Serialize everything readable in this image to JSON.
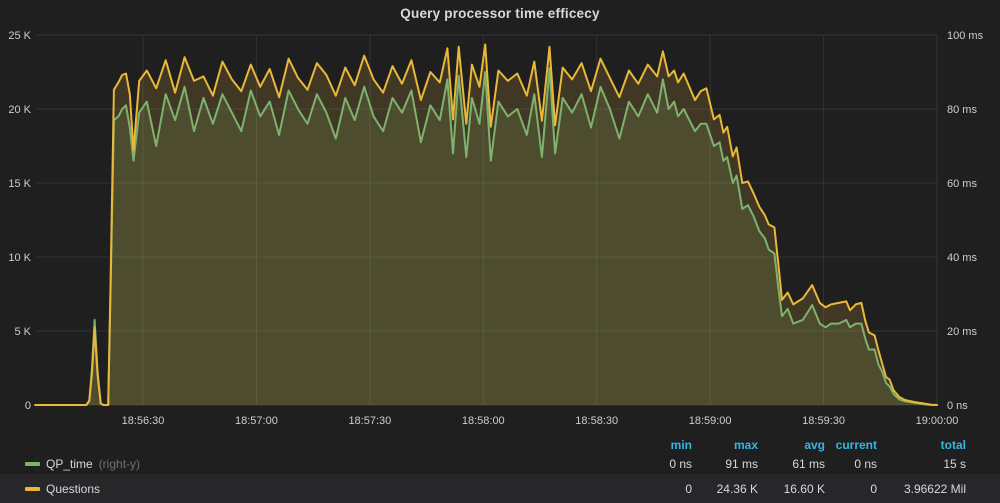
{
  "panel": {
    "title": "Query processor time efficecy"
  },
  "colors": {
    "background": "#1f1f20",
    "grid": "rgba(255,255,255,0.09)",
    "tick_text": "#cdced0",
    "qp_time_green": "#7EB26D",
    "questions_yellow": "#EAB839",
    "legend_header_blue": "#33B5E5",
    "legend_highlight_row": "#27272a",
    "fill_opacity": 0.17
  },
  "legend": {
    "columns": [
      "min",
      "max",
      "avg",
      "current",
      "total"
    ],
    "series": [
      {
        "name": "QP_time",
        "axis_tag": "(right-y)",
        "color": "#7EB26D",
        "stats": {
          "min": "0 ns",
          "max": "91 ms",
          "avg": "61 ms",
          "current": "0 ns",
          "total": "15 s"
        }
      },
      {
        "name": "Questions",
        "axis_tag": "",
        "color": "#EAB839",
        "stats": {
          "min": "0",
          "max": "24.36 K",
          "avg": "16.60 K",
          "current": "0",
          "total": "3.96622 Mil"
        }
      }
    ]
  },
  "chart_data": {
    "type": "area",
    "title": "Query processor time efficecy",
    "x_axis": {
      "kind": "time",
      "range": [
        "18:56:00",
        "19:00:00"
      ],
      "ticks": [
        {
          "t": 30,
          "label": "18:56:30"
        },
        {
          "t": 60,
          "label": "18:57:00"
        },
        {
          "t": 90,
          "label": "18:57:30"
        },
        {
          "t": 120,
          "label": "18:58:00"
        },
        {
          "t": 150,
          "label": "18:58:30"
        },
        {
          "t": 180,
          "label": "18:59:00"
        },
        {
          "t": 210,
          "label": "18:59:30"
        },
        {
          "t": 240,
          "label": "19:00:00"
        }
      ]
    },
    "left_axis": {
      "series": "Questions",
      "unit": "count (K)",
      "max": 25,
      "ticks": [
        {
          "value": 25,
          "label": "25 K"
        },
        {
          "value": 20,
          "label": "20 K"
        },
        {
          "value": 15,
          "label": "15 K"
        },
        {
          "value": 10,
          "label": "10 K"
        },
        {
          "value": 5,
          "label": "5 K"
        },
        {
          "value": 0,
          "label": "0"
        }
      ]
    },
    "right_axis": {
      "series": "QP_time",
      "unit": "ms",
      "max": 100,
      "ticks": [
        {
          "value": 100,
          "label": "100 ms"
        },
        {
          "value": 80,
          "label": "80 ms"
        },
        {
          "value": 60,
          "label": "60 ms"
        },
        {
          "value": 40,
          "label": "40 ms"
        },
        {
          "value": 20,
          "label": "20 ms"
        },
        {
          "value": 0,
          "label": "0 ns"
        }
      ]
    },
    "series": [
      {
        "name": "QP_time",
        "axis": "right",
        "color": "#7EB26D",
        "unit": "ms"
      },
      {
        "name": "Questions",
        "axis": "left",
        "color": "#EAB839",
        "unit": "K"
      }
    ],
    "points_format": [
      "seconds_after_18:56:00",
      "questions_K",
      "qp_time_ms"
    ],
    "points": [
      [
        1.5,
        0,
        0
      ],
      [
        5,
        0,
        0
      ],
      [
        9,
        0,
        0
      ],
      [
        13,
        0,
        0
      ],
      [
        15,
        0,
        0
      ],
      [
        15.8,
        0.3,
        1
      ],
      [
        16.5,
        2.2,
        10
      ],
      [
        17.2,
        5.2,
        23
      ],
      [
        18,
        2.0,
        9
      ],
      [
        18.8,
        0.1,
        0.5
      ],
      [
        19.5,
        0,
        0
      ],
      [
        20.8,
        0,
        0
      ],
      [
        21.4,
        8,
        30
      ],
      [
        22.3,
        21.3,
        77
      ],
      [
        23.5,
        21.8,
        78
      ],
      [
        24.5,
        22.3,
        80
      ],
      [
        25.5,
        22.4,
        81
      ],
      [
        26.5,
        21.0,
        75
      ],
      [
        27.5,
        17.2,
        66
      ],
      [
        29,
        21.9,
        79
      ],
      [
        31,
        22.6,
        82
      ],
      [
        33.5,
        21.4,
        70
      ],
      [
        36,
        23.3,
        84
      ],
      [
        38.5,
        21.1,
        77
      ],
      [
        41,
        23.5,
        86
      ],
      [
        43.5,
        21.9,
        74
      ],
      [
        46,
        22.2,
        83
      ],
      [
        48.5,
        20.9,
        76
      ],
      [
        51,
        23.2,
        84
      ],
      [
        53.5,
        22.0,
        79
      ],
      [
        56,
        21.2,
        74
      ],
      [
        58.5,
        23.0,
        85
      ],
      [
        61,
        21.5,
        78
      ],
      [
        63.5,
        22.7,
        82
      ],
      [
        66,
        20.8,
        73
      ],
      [
        68.5,
        23.4,
        85
      ],
      [
        71,
        22.1,
        80
      ],
      [
        73.5,
        21.3,
        76
      ],
      [
        76,
        23.1,
        84
      ],
      [
        78.5,
        22.3,
        79
      ],
      [
        81,
        20.9,
        72
      ],
      [
        83.5,
        22.8,
        83
      ],
      [
        86,
        21.6,
        77
      ],
      [
        88.5,
        23.6,
        86
      ],
      [
        91,
        22.0,
        78
      ],
      [
        93.5,
        21.1,
        74
      ],
      [
        96,
        22.9,
        83
      ],
      [
        98.5,
        21.7,
        79
      ],
      [
        101,
        23.3,
        85
      ],
      [
        103.5,
        20.6,
        71
      ],
      [
        106,
        22.5,
        81
      ],
      [
        108.5,
        21.8,
        77
      ],
      [
        110.5,
        24.1,
        88
      ],
      [
        112,
        19.3,
        68
      ],
      [
        113.5,
        24.2,
        89
      ],
      [
        115.5,
        19.0,
        67
      ],
      [
        117,
        23.0,
        83
      ],
      [
        119,
        21.5,
        76
      ],
      [
        120.5,
        24.36,
        90
      ],
      [
        122,
        18.8,
        66
      ],
      [
        124,
        22.6,
        82
      ],
      [
        126.5,
        21.9,
        78
      ],
      [
        129,
        22.4,
        80
      ],
      [
        131.5,
        20.9,
        73
      ],
      [
        133.5,
        23.2,
        84
      ],
      [
        135.5,
        19.2,
        67
      ],
      [
        137.5,
        24.2,
        91
      ],
      [
        139,
        18.9,
        68
      ],
      [
        141,
        22.8,
        83
      ],
      [
        143.5,
        22.0,
        79
      ],
      [
        146,
        23.1,
        84
      ],
      [
        148.5,
        21.2,
        75
      ],
      [
        151,
        23.4,
        86
      ],
      [
        153.5,
        22.1,
        80
      ],
      [
        156,
        20.8,
        72
      ],
      [
        158.5,
        22.6,
        82
      ],
      [
        161,
        21.7,
        78
      ],
      [
        163.5,
        23.0,
        84
      ],
      [
        166,
        22.2,
        79
      ],
      [
        167.5,
        23.9,
        88
      ],
      [
        169,
        22.2,
        80
      ],
      [
        170.5,
        22.6,
        82
      ],
      [
        171.5,
        21.8,
        78
      ],
      [
        173,
        22.4,
        80
      ],
      [
        176,
        20.6,
        74
      ],
      [
        177.5,
        21.2,
        76
      ],
      [
        179,
        21.4,
        76
      ],
      [
        181,
        19.3,
        70
      ],
      [
        182.5,
        19.6,
        71
      ],
      [
        183.5,
        18.4,
        66
      ],
      [
        184.5,
        18.8,
        67
      ],
      [
        186,
        16.8,
        60
      ],
      [
        187,
        17.4,
        62
      ],
      [
        188.5,
        15.0,
        53
      ],
      [
        190,
        15.1,
        54
      ],
      [
        191.5,
        14.3,
        51
      ],
      [
        193,
        13.4,
        47
      ],
      [
        194.5,
        12.8,
        45
      ],
      [
        195.5,
        12.2,
        42
      ],
      [
        197,
        12.0,
        41
      ],
      [
        198,
        9.6,
        32
      ],
      [
        199,
        7.1,
        24
      ],
      [
        200.5,
        7.6,
        26
      ],
      [
        202,
        6.8,
        22
      ],
      [
        204.5,
        7.2,
        23
      ],
      [
        207,
        8.1,
        27
      ],
      [
        209,
        6.9,
        22
      ],
      [
        210.5,
        6.6,
        21
      ],
      [
        212,
        6.8,
        22
      ],
      [
        214,
        6.9,
        22
      ],
      [
        216,
        7.0,
        23
      ],
      [
        217,
        6.4,
        21
      ],
      [
        218.5,
        6.8,
        22
      ],
      [
        220,
        6.9,
        22
      ],
      [
        221,
        5.7,
        18
      ],
      [
        222,
        4.9,
        15
      ],
      [
        223.5,
        4.7,
        15
      ],
      [
        224.5,
        3.7,
        11
      ],
      [
        225.5,
        2.8,
        9
      ],
      [
        226.5,
        1.9,
        6
      ],
      [
        227.5,
        1.7,
        5
      ],
      [
        228.5,
        1.0,
        3
      ],
      [
        230,
        0.55,
        1.5
      ],
      [
        231.5,
        0.34,
        1
      ],
      [
        234,
        0.2,
        0.6
      ],
      [
        236.5,
        0.1,
        0.2
      ],
      [
        238.5,
        0.02,
        0
      ],
      [
        240,
        0,
        0
      ]
    ]
  }
}
